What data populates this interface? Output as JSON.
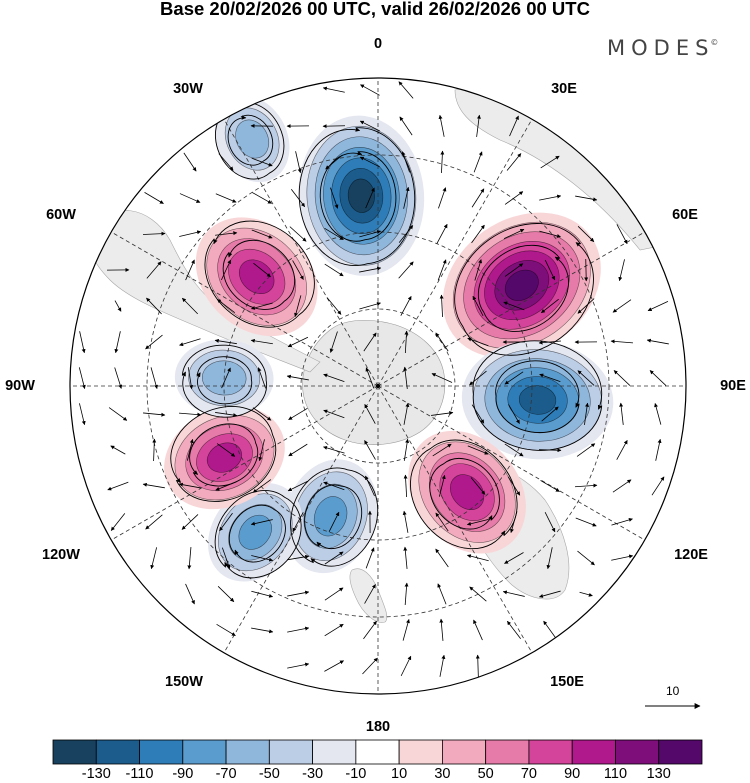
{
  "title": "Base 20/02/2026 00 UTC, valid 26/02/2026 00 UTC",
  "brand": "MODES",
  "brand_mark": "©",
  "longitude_labels": [
    {
      "id": "lon-0",
      "text": "0"
    },
    {
      "id": "lon-30e",
      "text": "30E"
    },
    {
      "id": "lon-60e",
      "text": "60E"
    },
    {
      "id": "lon-90e",
      "text": "90E"
    },
    {
      "id": "lon-120e",
      "text": "120E"
    },
    {
      "id": "lon-150e",
      "text": "150E"
    },
    {
      "id": "lon-180",
      "text": "180"
    },
    {
      "id": "lon-150w",
      "text": "150W"
    },
    {
      "id": "lon-120w",
      "text": "120W"
    },
    {
      "id": "lon-90w",
      "text": "90W"
    },
    {
      "id": "lon-60w",
      "text": "60W"
    },
    {
      "id": "lon-30w",
      "text": "30W"
    }
  ],
  "reference_vector": {
    "label": "10"
  },
  "colorbar": {
    "tick_labels": [
      "-130",
      "-110",
      "-90",
      "-70",
      "-50",
      "-30",
      "-10",
      "10",
      "30",
      "50",
      "70",
      "90",
      "110",
      "130"
    ],
    "colors": [
      "#17415f",
      "#1c5c8c",
      "#2e7db8",
      "#5b9cce",
      "#8fb6db",
      "#bccde6",
      "#e4e6f0",
      "#ffffff",
      "#f8d6d8",
      "#f2abbe",
      "#e67aa8",
      "#d4449a",
      "#b0198c",
      "#7e0f7a",
      "#54086a"
    ]
  },
  "anomalies": [
    {
      "name": "anomaly-center-1",
      "lon": -5,
      "r": 0.62,
      "value": -120
    },
    {
      "name": "anomaly-center-2",
      "lon": 55,
      "r": 0.57,
      "value": 130
    },
    {
      "name": "anomaly-center-3",
      "lon": 95,
      "r": 0.52,
      "value": -110
    },
    {
      "name": "anomaly-center-4",
      "lon": 140,
      "r": 0.45,
      "value": 90
    },
    {
      "name": "anomaly-center-5",
      "lon": -160,
      "r": 0.45,
      "value": -70
    },
    {
      "name": "anomaly-center-6",
      "lon": -140,
      "r": 0.62,
      "value": -60
    },
    {
      "name": "anomaly-center-7",
      "lon": -115,
      "r": 0.55,
      "value": 80
    },
    {
      "name": "anomaly-center-8",
      "lon": -87,
      "r": 0.5,
      "value": -50
    },
    {
      "name": "anomaly-center-9",
      "lon": -48,
      "r": 0.53,
      "value": 90
    },
    {
      "name": "anomaly-center-10",
      "lon": -27,
      "r": 0.9,
      "value": -40
    }
  ]
}
